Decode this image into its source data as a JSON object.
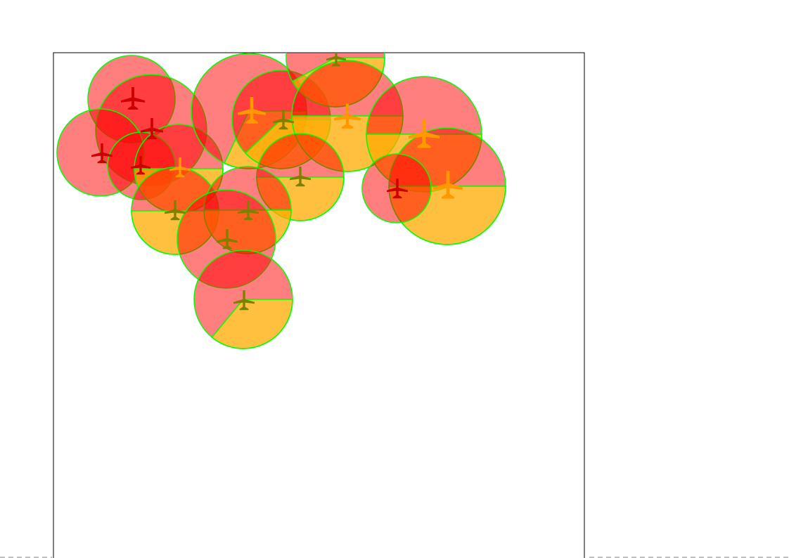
{
  "colors": {
    "background": "#ffffff",
    "frame": "#000000",
    "page_break": "#999999",
    "circle_stroke": "#00ff00",
    "red_fill": "#ff0000",
    "yellow_fill": "#ffff00",
    "plane_red": "#cc0000",
    "plane_orange": "#ff9900",
    "plane_olive": "#808000"
  },
  "icon": "airplane-icon",
  "fill_opacity": 0.5
}
